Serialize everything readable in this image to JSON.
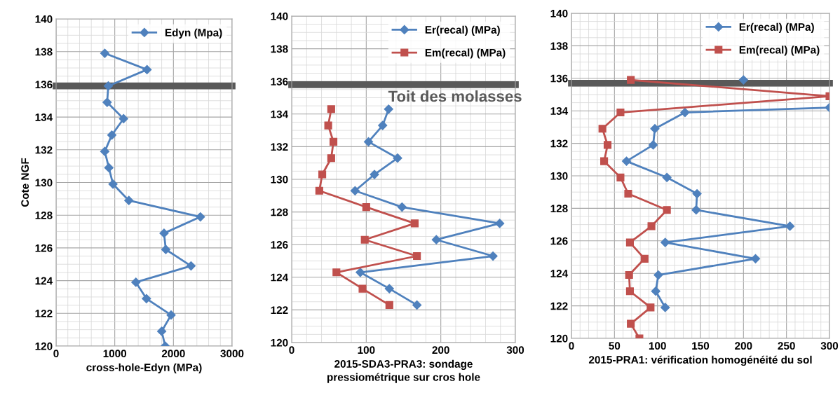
{
  "chart_data": [
    {
      "type": "line",
      "xlabel": "cross-hole-Edyn (MPa)",
      "ylabel": "Cote NGF",
      "xlim": [
        0,
        3000
      ],
      "ylim": [
        120,
        140
      ],
      "xticks": [
        0,
        1000,
        2000,
        3000
      ],
      "yticks": [
        120,
        122,
        124,
        126,
        128,
        130,
        132,
        134,
        136,
        138,
        140
      ],
      "grid": true,
      "legend": "top right",
      "series": [
        {
          "name": "Edyn (Mpa)",
          "color": "#4f81bd",
          "marker": "diamond",
          "x": [
            830,
            1550,
            890,
            870,
            1150,
            950,
            830,
            900,
            970,
            1240,
            2460,
            1840,
            1870,
            2300,
            1360,
            1540,
            1960,
            1800,
            1860
          ],
          "values": [
            137.9,
            136.9,
            135.9,
            134.9,
            133.9,
            132.9,
            131.9,
            130.9,
            129.9,
            128.9,
            127.9,
            126.9,
            125.9,
            124.9,
            123.9,
            122.9,
            121.9,
            120.9,
            120
          ]
        }
      ],
      "ref_lines": [
        {
          "axis": "y",
          "value": 135.9,
          "label": null,
          "color": "#595959"
        }
      ]
    },
    {
      "type": "line",
      "xlabel": "2015-SDA3-PRA3: sondage\npressiométrique sur cros hole",
      "xlim": [
        0,
        300
      ],
      "ylim": [
        120,
        140
      ],
      "xticks": [
        0,
        100,
        200,
        300
      ],
      "yticks": [
        120,
        122,
        124,
        126,
        128,
        130,
        132,
        134,
        136,
        138,
        140
      ],
      "grid": true,
      "legend": "top right",
      "series": [
        {
          "name": "Er(recal) (MPa)",
          "color": "#4f81bd",
          "marker": "diamond",
          "x": [
            130,
            122,
            103,
            142,
            111,
            85,
            148,
            279,
            194,
            270,
            92,
            131,
            168
          ],
          "values": [
            134.3,
            133.3,
            132.3,
            131.3,
            130.3,
            129.3,
            128.3,
            127.3,
            126.3,
            125.3,
            124.3,
            123.3,
            122.3
          ]
        },
        {
          "name": "Em(recal) (MPa)",
          "color": "#c0504d",
          "marker": "square",
          "x": [
            53,
            49,
            56,
            53,
            41,
            37,
            100,
            165,
            98,
            168,
            60,
            95,
            131
          ],
          "values": [
            134.3,
            133.3,
            132.3,
            131.3,
            130.3,
            129.3,
            128.3,
            127.3,
            126.3,
            125.3,
            124.3,
            123.3,
            122.3
          ]
        }
      ],
      "ref_lines": [
        {
          "axis": "y",
          "value": 135.8,
          "label": "Toit des molasses",
          "color": "#595959"
        }
      ]
    },
    {
      "type": "line",
      "xlabel": "2015-PRA1: vérification homogénéité du sol",
      "xlim": [
        0,
        300
      ],
      "ylim": [
        120,
        140
      ],
      "xticks": [
        0,
        50,
        100,
        150,
        200,
        250,
        300
      ],
      "yticks": [
        120,
        122,
        124,
        126,
        128,
        130,
        132,
        134,
        136,
        138,
        140
      ],
      "grid": true,
      "legend": "top right",
      "series": [
        {
          "name": "Er(recal) (MPa)",
          "color": "#4f81bd",
          "marker": "diamond",
          "x": [
            200,
            null,
            300,
            132,
            97,
            95,
            64,
            111,
            146,
            145,
            254,
            109,
            214,
            101,
            98,
            109
          ],
          "values": [
            135.9,
            null,
            134.2,
            133.9,
            132.9,
            131.9,
            130.9,
            129.9,
            128.9,
            127.9,
            126.9,
            125.9,
            124.9,
            123.9,
            122.9,
            121.9
          ]
        },
        {
          "name": "Em(recal) (MPa)",
          "color": "#c0504d",
          "marker": "square",
          "x": [
            69,
            300,
            57,
            36,
            42,
            38,
            57,
            66,
            111,
            93,
            68,
            85,
            67,
            68,
            92,
            69,
            79
          ],
          "values": [
            135.9,
            134.9,
            133.9,
            132.9,
            131.9,
            130.9,
            129.9,
            128.9,
            127.9,
            126.9,
            125.9,
            124.9,
            123.9,
            122.9,
            121.9,
            120.9,
            120
          ]
        }
      ],
      "ref_lines": [
        {
          "axis": "y",
          "value": 135.7,
          "label": null,
          "color": "#595959"
        }
      ]
    }
  ]
}
